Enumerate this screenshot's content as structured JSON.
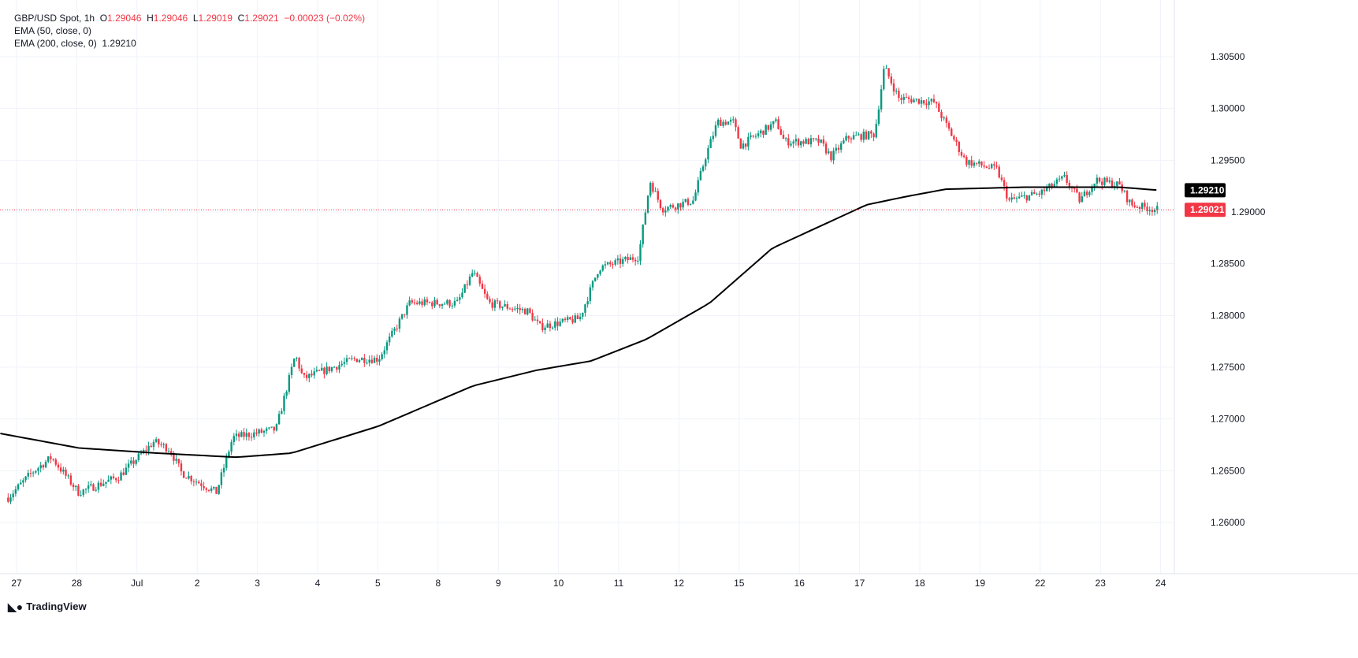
{
  "chart_data": {
    "type": "candlestick",
    "title": "GBP/USD Spot, 1h",
    "ohlc": {
      "open": "1.29046",
      "high": "1.29046",
      "low": "1.29019",
      "close": "1.29021",
      "change": "−0.00023 (−0.02%)"
    },
    "indicators": [
      {
        "label": "EMA (50, close, 0)",
        "value": ""
      },
      {
        "label": "EMA (200, close, 0)",
        "value": "1.29210"
      }
    ],
    "ylim": [
      1.2575,
      1.3075
    ],
    "yticks": [
      1.305,
      1.3,
      1.295,
      1.29,
      1.285,
      1.28,
      1.275,
      1.27,
      1.265,
      1.26
    ],
    "ytick_labels": [
      "1.30500",
      "1.30000",
      "1.29500",
      "1.29000",
      "1.28500",
      "1.28000",
      "1.27500",
      "1.27000",
      "1.26500",
      "1.26000"
    ],
    "xticks": [
      "27",
      "28",
      "Jul",
      "2",
      "3",
      "4",
      "5",
      "8",
      "9",
      "10",
      "11",
      "12",
      "15",
      "16",
      "17",
      "18",
      "19",
      "22",
      "23",
      "24"
    ],
    "price_path_days_price": [
      [
        -0.14,
        1.2624
      ],
      [
        0.25,
        1.2648
      ],
      [
        0.58,
        1.2663
      ],
      [
        1.03,
        1.2629
      ],
      [
        1.69,
        1.2644
      ],
      [
        2.28,
        1.2678
      ],
      [
        2.54,
        1.2671
      ],
      [
        2.74,
        1.2648
      ],
      [
        3.32,
        1.2629
      ],
      [
        3.59,
        1.2682
      ],
      [
        4.31,
        1.269
      ],
      [
        4.63,
        1.2762
      ],
      [
        4.76,
        1.2739
      ],
      [
        5.62,
        1.2758
      ],
      [
        6.01,
        1.2758
      ],
      [
        6.53,
        1.2812
      ],
      [
        7.32,
        1.2812
      ],
      [
        7.58,
        1.2842
      ],
      [
        7.84,
        1.2812
      ],
      [
        8.49,
        1.2804
      ],
      [
        8.69,
        1.2789
      ],
      [
        9.35,
        1.2797
      ],
      [
        9.67,
        1.2846
      ],
      [
        10.33,
        1.2857
      ],
      [
        10.52,
        1.293
      ],
      [
        10.72,
        1.2903
      ],
      [
        11.24,
        1.2911
      ],
      [
        11.44,
        1.2953
      ],
      [
        11.64,
        1.2987
      ],
      [
        11.9,
        1.2987
      ],
      [
        12.03,
        1.2964
      ],
      [
        12.62,
        1.2987
      ],
      [
        12.75,
        1.2968
      ],
      [
        13.34,
        1.2968
      ],
      [
        13.53,
        1.2953
      ],
      [
        13.8,
        1.2972
      ],
      [
        14.25,
        1.2975
      ],
      [
        14.41,
        1.304
      ],
      [
        14.65,
        1.301
      ],
      [
        15.24,
        1.3006
      ],
      [
        15.76,
        1.2949
      ],
      [
        16.28,
        1.2941
      ],
      [
        16.48,
        1.2911
      ],
      [
        17.0,
        1.2918
      ],
      [
        17.4,
        1.2933
      ],
      [
        17.66,
        1.2911
      ],
      [
        17.92,
        1.2931
      ],
      [
        18.31,
        1.2926
      ],
      [
        18.51,
        1.2907
      ],
      [
        18.97,
        1.2902
      ]
    ],
    "ema200_days_price": [
      [
        -0.27,
        1.2686
      ],
      [
        1.03,
        1.2672
      ],
      [
        2.34,
        1.2667
      ],
      [
        3.65,
        1.2663
      ],
      [
        4.57,
        1.2667
      ],
      [
        6.01,
        1.2693
      ],
      [
        7.58,
        1.2732
      ],
      [
        8.63,
        1.2747
      ],
      [
        9.54,
        1.2756
      ],
      [
        10.46,
        1.2777
      ],
      [
        11.51,
        1.2812
      ],
      [
        12.55,
        1.2865
      ],
      [
        14.12,
        1.2907
      ],
      [
        14.78,
        1.2915
      ],
      [
        15.43,
        1.2922
      ],
      [
        16.74,
        1.2924
      ],
      [
        18.31,
        1.2924
      ],
      [
        18.97,
        1.2921
      ]
    ],
    "last_price_label": "1.29021",
    "ema_price_label": "1.29210",
    "colors": {
      "up": "#089981",
      "down": "#f23645",
      "ema": "#000000",
      "grid": "#f0f3fa"
    }
  },
  "branding": "TradingView"
}
